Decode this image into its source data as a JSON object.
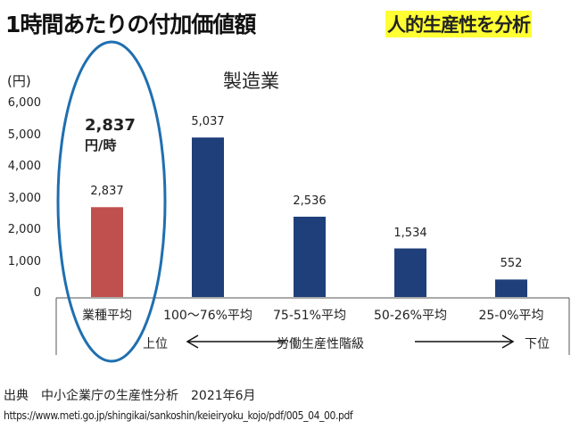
{
  "header": {
    "title": "1時間あたりの付加価値額",
    "tag": "人的生産性を分析"
  },
  "chart_data": {
    "type": "bar",
    "title": "製造業",
    "ylabel": "(円)",
    "ylim": [
      0,
      6000
    ],
    "yticks": [
      "0",
      "1,000",
      "2,000",
      "3,000",
      "4,000",
      "5,000",
      "6,000"
    ],
    "categories": [
      "業種平均",
      "100〜76%平均",
      "75-51%平均",
      "50-26%平均",
      "25-0%平均"
    ],
    "values": [
      2837,
      5037,
      2536,
      1534,
      552
    ],
    "data_labels": [
      "2,837",
      "5,037",
      "2,536",
      "1,534",
      "552"
    ],
    "colors": [
      "#c0504d",
      "#1f3f7a",
      "#1f3f7a",
      "#1f3f7a",
      "#1f3f7a"
    ],
    "grid": false,
    "axis_caption": {
      "left": "上位",
      "center": "労働生産性階級",
      "right": "下位"
    },
    "annotation": {
      "value": "2,837",
      "unit": "円/時",
      "highlight_color": "#1f6fb0"
    }
  },
  "footer": {
    "source": "出典　中小企業庁の生産性分析　2021年6月",
    "url": "https://www.meti.go.jp/shingikai/sankoshin/keieiryoku_kojo/pdf/005_04_00.pdf"
  }
}
